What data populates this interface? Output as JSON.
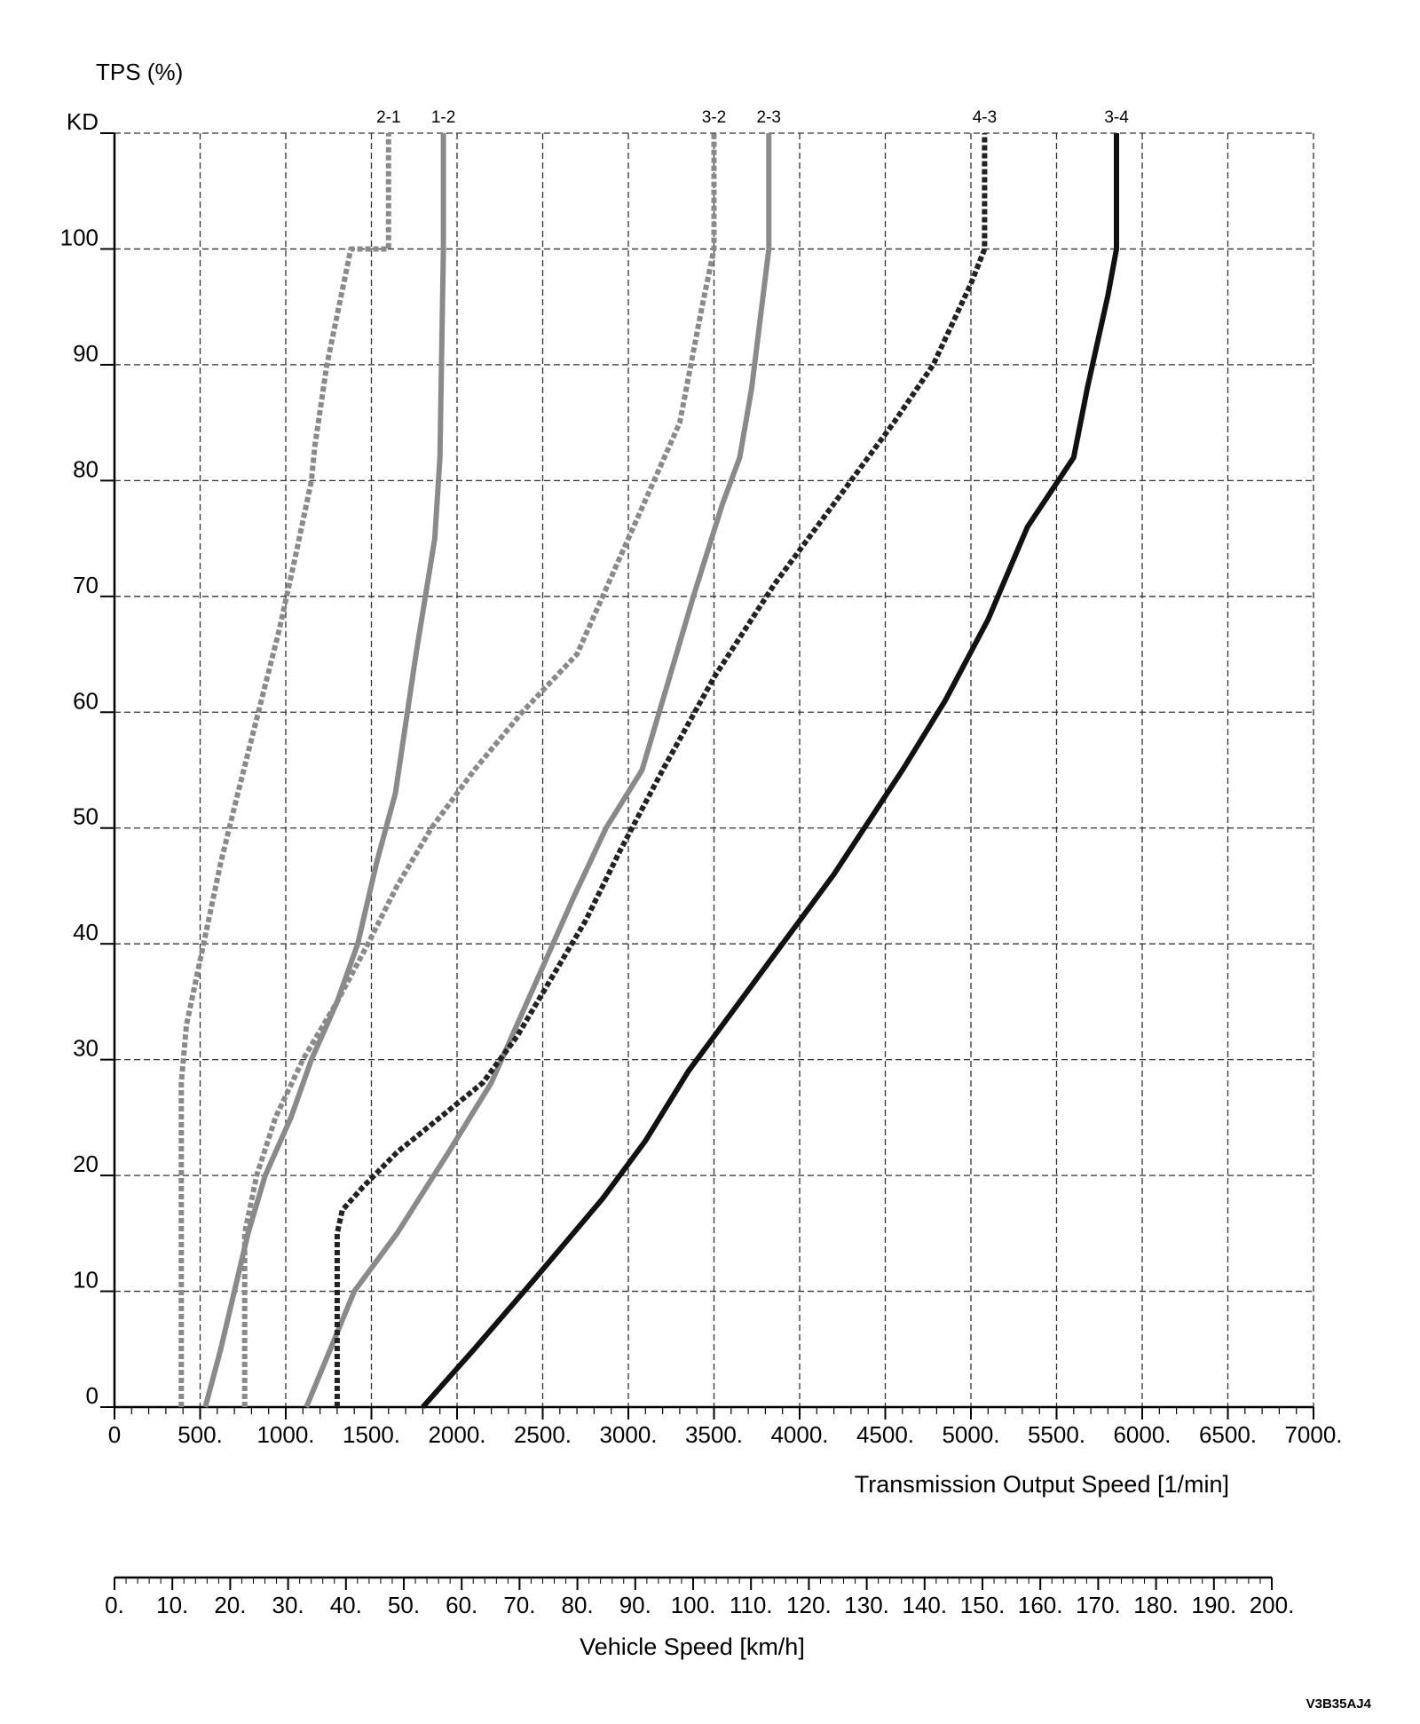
{
  "chart_data": {
    "type": "line",
    "ylabel": "TPS (%)",
    "xlabel": "Transmission Output Speed [1/min]",
    "xlim": [
      0,
      7000
    ],
    "ylim": [
      0,
      110
    ],
    "x_tick_labels": [
      "0",
      "500.",
      "1000.",
      "1500.",
      "2000.",
      "2500.",
      "3000.",
      "3500.",
      "4000.",
      "4500.",
      "5000.",
      "5500.",
      "6000.",
      "6500.",
      "7000."
    ],
    "x_tick_values": [
      0,
      500,
      1000,
      1500,
      2000,
      2500,
      3000,
      3500,
      4000,
      4500,
      5000,
      5500,
      6000,
      6500,
      7000
    ],
    "y_tick_labels": [
      "0",
      "10",
      "20",
      "30",
      "40",
      "50",
      "60",
      "70",
      "80",
      "90",
      "100",
      "KD"
    ],
    "y_tick_values": [
      0,
      10,
      20,
      30,
      40,
      50,
      60,
      70,
      80,
      90,
      100,
      110
    ],
    "grid": true,
    "series": [
      {
        "name": "2-1",
        "style": "dashed",
        "color": "#8a8a8a",
        "x": [
          390,
          390,
          420,
          520,
          620,
          720,
          840,
          960,
          1050,
          1150,
          1170,
          1240,
          1380,
          1400,
          1600,
          1600
        ],
        "y": [
          0,
          28,
          33,
          40,
          47,
          53,
          60,
          67,
          73,
          80,
          83,
          90,
          100,
          100,
          100,
          110
        ]
      },
      {
        "name": "1-2",
        "style": "solid",
        "color": "#8a8a8a",
        "x": [
          530,
          620,
          700,
          780,
          880,
          1030,
          1150,
          1300,
          1420,
          1530,
          1640,
          1760,
          1870,
          1900,
          1920,
          1920
        ],
        "y": [
          0,
          5,
          10,
          15,
          20,
          25,
          30,
          35,
          40,
          47,
          53,
          65,
          75,
          82,
          100,
          110
        ]
      },
      {
        "name": "3-2",
        "style": "dashed",
        "color": "#8a8a8a",
        "x": [
          760,
          760,
          830,
          940,
          1100,
          1300,
          1480,
          1650,
          1850,
          2100,
          2380,
          2700,
          3000,
          3150,
          3300,
          3430,
          3500,
          3500
        ],
        "y": [
          0,
          15,
          20,
          25,
          30,
          35,
          40,
          45,
          50,
          55,
          60,
          65,
          75,
          80,
          85,
          95,
          100,
          110
        ]
      },
      {
        "name": "2-3",
        "style": "solid",
        "color": "#8a8a8a",
        "x": [
          1120,
          1260,
          1400,
          1650,
          1950,
          2200,
          2350,
          2500,
          2680,
          2870,
          3080,
          3220,
          3380,
          3550,
          3650,
          3720,
          3820,
          3820
        ],
        "y": [
          0,
          5,
          10,
          15,
          22,
          28,
          33,
          38,
          44,
          50,
          55,
          62,
          70,
          78,
          82,
          88,
          100,
          110
        ]
      },
      {
        "name": "4-3",
        "style": "dashed",
        "color": "#222222",
        "x": [
          1300,
          1300,
          1330,
          1450,
          1650,
          1900,
          2150,
          2350,
          2550,
          2750,
          2950,
          3200,
          3500,
          3850,
          4200,
          4550,
          4780,
          5000,
          5080,
          5080
        ],
        "y": [
          0,
          15,
          17,
          19,
          22,
          25,
          28,
          32,
          37,
          42,
          48,
          55,
          63,
          71,
          78,
          85,
          90,
          97,
          100,
          110
        ]
      },
      {
        "name": "3-4",
        "style": "solid",
        "color": "#111111",
        "x": [
          1800,
          2100,
          2450,
          2850,
          3100,
          3350,
          3600,
          3900,
          4200,
          4600,
          4850,
          5100,
          5330,
          5600,
          5680,
          5800,
          5850,
          5850
        ],
        "y": [
          0,
          5,
          11,
          18,
          23,
          29,
          34,
          40,
          46,
          55,
          61,
          68,
          76,
          82,
          88,
          96,
          100,
          110
        ]
      }
    ],
    "secondary_x_axis": {
      "label": "Vehicle Speed [km/h]",
      "range": [
        0,
        200
      ],
      "tick_labels": [
        "0.",
        "10.",
        "20.",
        "30.",
        "40.",
        "50.",
        "60.",
        "70.",
        "80.",
        "90.",
        "100.",
        "110.",
        "120.",
        "130.",
        "140.",
        "150.",
        "160.",
        "170.",
        "180.",
        "190.",
        "200."
      ]
    }
  },
  "figure_code": "V3B35AJ4"
}
